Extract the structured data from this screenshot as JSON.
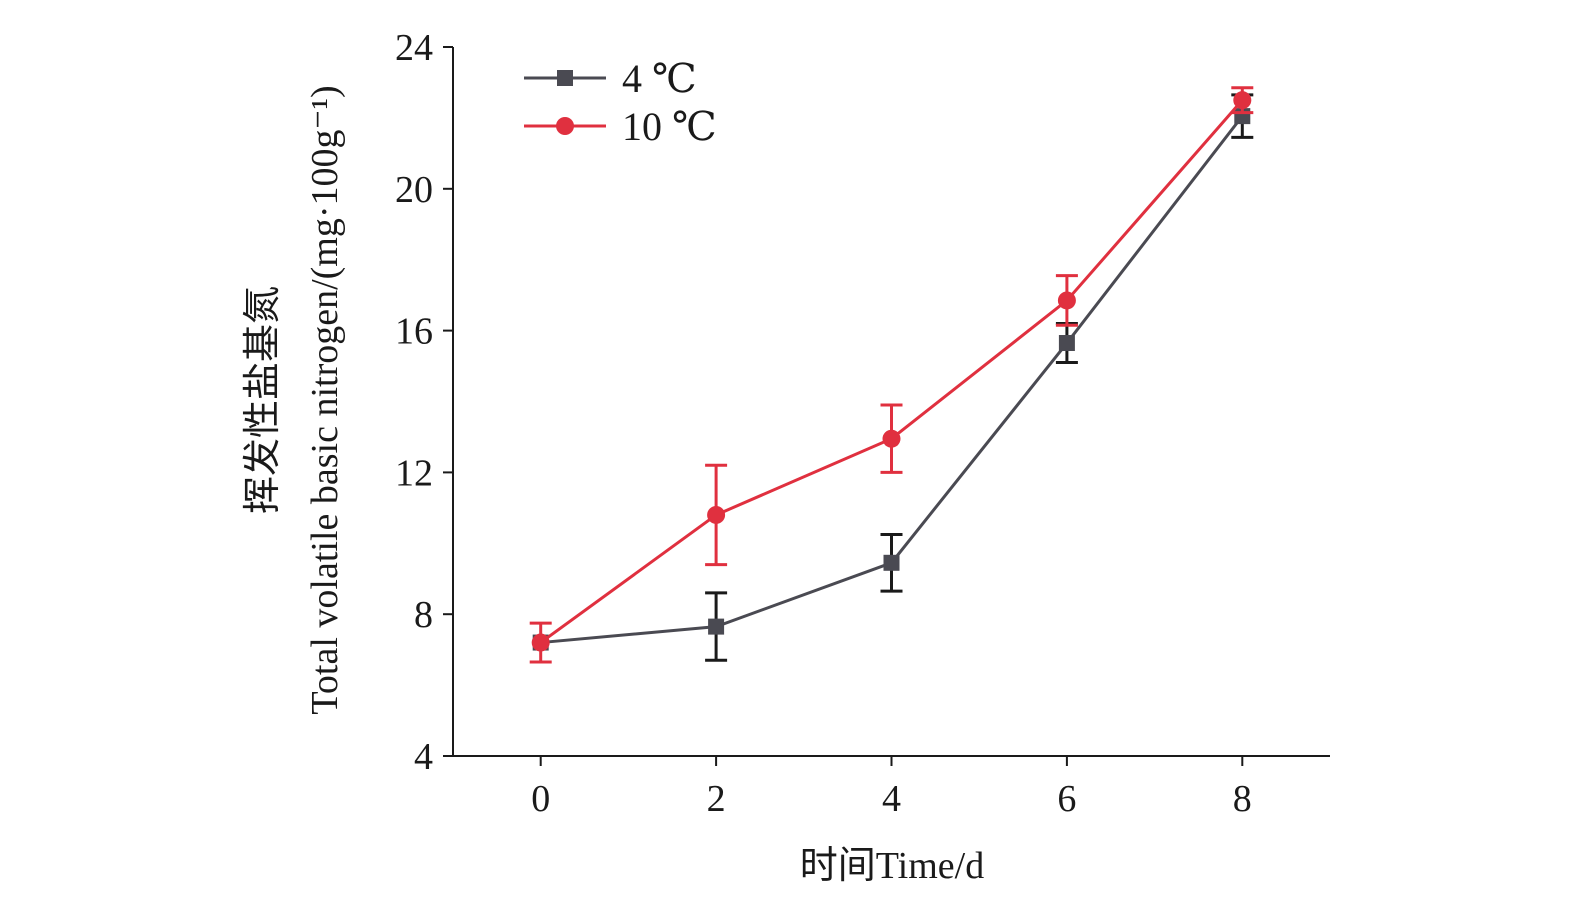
{
  "chart_data": {
    "type": "line",
    "title": "",
    "xlabel": "时间Time/d",
    "ylabel_line1": "挥发性盐基氮",
    "ylabel_line2": "Total volatile basic nitrogen/(mg·100g⁻¹)",
    "xlim": [
      -1,
      9
    ],
    "ylim": [
      4,
      24
    ],
    "x_ticks": [
      0,
      2,
      4,
      6,
      8
    ],
    "y_ticks": [
      4,
      8,
      12,
      16,
      20,
      24
    ],
    "x_tick_labels": [
      "0",
      "2",
      "4",
      "6",
      "8"
    ],
    "y_tick_labels": [
      "4",
      "8",
      "12",
      "16",
      "20",
      "24"
    ],
    "grid": false,
    "legend_position": "top-left",
    "x": [
      0,
      2,
      4,
      6,
      8
    ],
    "series": [
      {
        "name": "4 ℃",
        "color": "#4a4a52",
        "marker": "square",
        "values": [
          7.2,
          7.65,
          9.45,
          15.65,
          22.05
        ],
        "error": [
          0.0,
          0.95,
          0.8,
          0.55,
          0.6
        ]
      },
      {
        "name": "10 ℃",
        "color": "#e0303f",
        "marker": "circle",
        "values": [
          7.2,
          10.8,
          12.95,
          16.85,
          22.5
        ],
        "error": [
          0.55,
          1.4,
          0.95,
          0.7,
          0.35
        ]
      }
    ]
  }
}
